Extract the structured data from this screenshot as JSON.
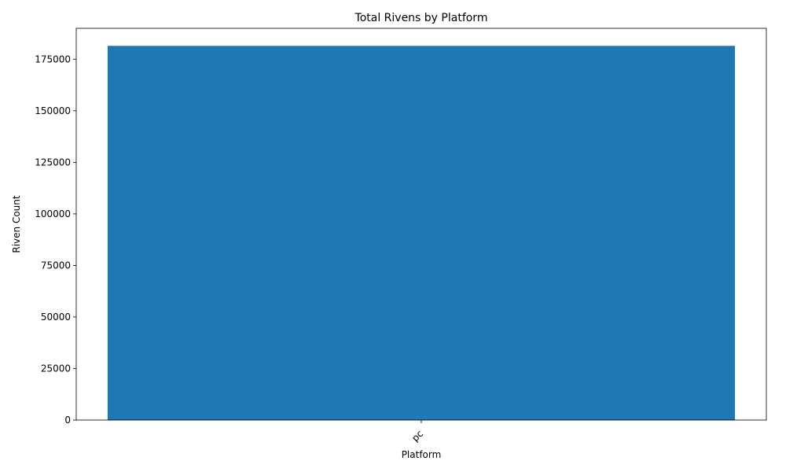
{
  "chart_data": {
    "type": "bar",
    "title": "Total Rivens by Platform",
    "xlabel": "Platform",
    "ylabel": "Riven Count",
    "categories": [
      "pc"
    ],
    "values": [
      181500
    ],
    "ylim": [
      0,
      190000
    ],
    "yticks": [
      0,
      25000,
      50000,
      75000,
      100000,
      125000,
      150000,
      175000
    ],
    "grid": false,
    "legend": "none",
    "bar_color": "#1f77b4",
    "xtick_rotation_deg": 45
  }
}
